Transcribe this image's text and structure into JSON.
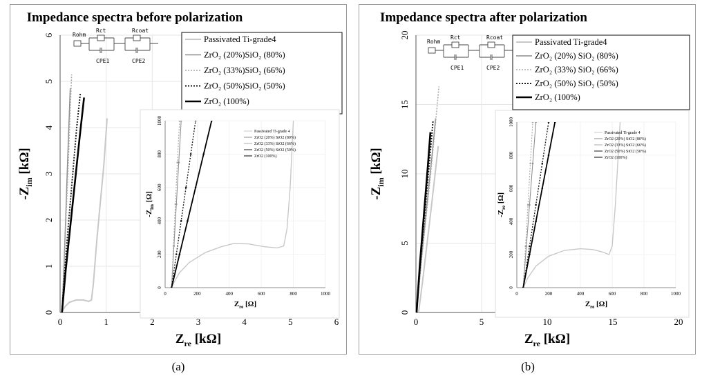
{
  "captions": [
    "(a)",
    "(b)"
  ],
  "circuit": {
    "labels": [
      "Rohm",
      "Rct",
      "Rcoat",
      "CPE1",
      "CPE2"
    ]
  },
  "colors": {
    "passivated": "#c8c8c8",
    "zro2_20": "#8c8c8c",
    "zro2_33": "#a8a8a8",
    "zro2_50": "#1a1a1a",
    "zro2_100": "#000000"
  },
  "chart_data": [
    {
      "type": "line",
      "title": "Impedance spectra before polarization",
      "xlabel": "Z",
      "xlabel_sub": "re",
      "xlabel_unit": "[kΩ]",
      "ylabel": "-Z",
      "ylabel_sub": "im",
      "ylabel_unit": "[kΩ]",
      "xlim": [
        0,
        6
      ],
      "ylim": [
        0,
        6
      ],
      "xticks": [
        0,
        1,
        2,
        3,
        4,
        5,
        6
      ],
      "yticks": [
        0,
        1,
        2,
        3,
        4,
        5,
        6
      ],
      "legend_position": "top-right",
      "series": [
        {
          "name": "Passivated Ti-grade4",
          "key": "passivated",
          "style": "solid-light",
          "x": [
            0.04,
            0.1,
            0.2,
            0.35,
            0.5,
            0.62,
            0.68,
            0.72,
            0.8,
            0.95,
            1.02
          ],
          "y": [
            0.0,
            0.12,
            0.22,
            0.27,
            0.27,
            0.24,
            0.27,
            0.6,
            1.6,
            3.2,
            4.2
          ]
        },
        {
          "name": "ZrO₂ (20%)SiO₂ (80%)",
          "key": "zro2_20",
          "style": "solid",
          "x": [
            0.04,
            0.08,
            0.12,
            0.16,
            0.2,
            0.22
          ],
          "y": [
            0.0,
            0.9,
            2.0,
            3.2,
            4.3,
            4.85
          ]
        },
        {
          "name": "ZrO₂ (33%)SiO₂ (66%)",
          "key": "zro2_33",
          "style": "dotted-light",
          "x": [
            0.04,
            0.08,
            0.13,
            0.18,
            0.22,
            0.25
          ],
          "y": [
            0.0,
            0.9,
            2.1,
            3.3,
            4.4,
            5.15
          ]
        },
        {
          "name": "ZrO₂ (50%)SiO₂ (50%)",
          "key": "zro2_50",
          "style": "dotted-dark",
          "x": [
            0.04,
            0.1,
            0.18,
            0.27,
            0.36,
            0.44
          ],
          "y": [
            0.0,
            0.9,
            1.9,
            2.95,
            4.0,
            4.75
          ]
        },
        {
          "name": "ZrO₂ (100%)",
          "key": "zro2_100",
          "style": "solid-bold",
          "x": [
            0.04,
            0.12,
            0.22,
            0.32,
            0.42,
            0.52
          ],
          "y": [
            0.0,
            0.9,
            1.85,
            2.8,
            3.75,
            4.65
          ]
        }
      ],
      "inset": {
        "xlabel": "Z",
        "xlabel_sub": "re",
        "xlabel_unit": "[Ω]",
        "ylabel": "-Z",
        "ylabel_sub": "im",
        "ylabel_unit": "[Ω]",
        "xlim": [
          0,
          1000
        ],
        "ylim": [
          0,
          1000
        ],
        "xticks": [
          0,
          200,
          400,
          600,
          800,
          1000
        ],
        "yticks": [
          0,
          200,
          400,
          600,
          800,
          1000
        ],
        "legend": [
          "Passivated Ti-grade 4",
          "ZrO2 (20%) SiO2 (80%)",
          "ZrO2 (33%) SiO2 (66%)",
          "ZrO2 (50%) SiO2 (50%)",
          "ZrO2 (100%)"
        ],
        "series": [
          {
            "key": "passivated",
            "x": [
              40,
              60,
              90,
              150,
              250,
              350,
              430,
              520,
              620,
              700,
              740,
              760,
              780,
              800
            ],
            "y": [
              0,
              40,
              90,
              150,
              210,
              245,
              265,
              262,
              245,
              238,
              250,
              350,
              600,
              1000
            ]
          },
          {
            "key": "zro2_20",
            "x": [
              40,
              55,
              70,
              85,
              100
            ],
            "y": [
              0,
              250,
              500,
              750,
              1000
            ]
          },
          {
            "key": "zro2_33",
            "x": [
              40,
              52,
              64,
              76,
              90
            ],
            "y": [
              0,
              250,
              500,
              750,
              1000
            ]
          },
          {
            "key": "zro2_50",
            "x": [
              40,
              70,
              100,
              130,
              160,
              190
            ],
            "y": [
              0,
              200,
              400,
              600,
              800,
              1000
            ]
          },
          {
            "key": "zro2_100",
            "x": [
              40,
              90,
              140,
              190,
              240,
              290
            ],
            "y": [
              0,
              200,
              400,
              600,
              800,
              1000
            ]
          }
        ]
      }
    },
    {
      "type": "line",
      "title": "Impedance spectra after polarization",
      "xlabel": "Z",
      "xlabel_sub": "re",
      "xlabel_unit": "[kΩ]",
      "ylabel": "-Z",
      "ylabel_sub": "im",
      "ylabel_unit": "[kΩ]",
      "xlim": [
        0,
        20
      ],
      "ylim": [
        0,
        20
      ],
      "xticks": [
        0,
        5,
        10,
        15,
        20
      ],
      "yticks": [
        0,
        5,
        10,
        15,
        20
      ],
      "legend_position": "top-right",
      "series": [
        {
          "name": "Passivated Ti-grade4",
          "key": "passivated",
          "style": "solid-light",
          "x": [
            0.2,
            0.5,
            0.8,
            1.1,
            1.4,
            1.7
          ],
          "y": [
            0.0,
            2.2,
            4.6,
            7.0,
            9.5,
            12.0
          ]
        },
        {
          "name": "ZrO₂ (20%) SiO₂ (80%)",
          "key": "zro2_20",
          "style": "solid",
          "x": [
            0.05,
            0.4,
            0.8,
            1.2,
            1.5
          ],
          "y": [
            0.0,
            3.7,
            7.4,
            11.1,
            14.0
          ]
        },
        {
          "name": "ZrO₂ (33%) SiO₂ (66%)",
          "key": "zro2_33",
          "style": "dotted-light",
          "x": [
            0.05,
            0.45,
            0.9,
            1.35,
            1.75
          ],
          "y": [
            0.0,
            4.0,
            8.0,
            12.2,
            16.3
          ]
        },
        {
          "name": "ZrO₂ (50%) SiO₂ (50%)",
          "key": "zro2_50",
          "style": "dotted-dark",
          "x": [
            0.05,
            0.35,
            0.7,
            1.05,
            1.3
          ],
          "y": [
            0.0,
            3.7,
            7.4,
            11.1,
            13.8
          ]
        },
        {
          "name": "ZrO₂ (100%)",
          "key": "zro2_100",
          "style": "solid-bold",
          "x": [
            0.05,
            0.3,
            0.6,
            0.9,
            1.1
          ],
          "y": [
            0.0,
            3.5,
            7.0,
            10.5,
            13.0
          ]
        }
      ],
      "inset": {
        "xlabel": "Z",
        "xlabel_sub": "re",
        "xlabel_unit": "[Ω]",
        "ylabel": "-Z",
        "ylabel_sub": "re",
        "ylabel_unit": "[Ω]",
        "xlim": [
          0,
          1000
        ],
        "ylim": [
          0,
          1000
        ],
        "xticks": [
          0,
          200,
          400,
          600,
          800,
          1000
        ],
        "yticks": [
          0,
          200,
          400,
          600,
          800,
          1000
        ],
        "legend": [
          "Passivated Ti-grade 4",
          "ZrO2 (20%) SiO2 (80%)",
          "ZrO2 (33%) SiO2 (66%)",
          "ZrO2 (50%) SiO2 (50%)",
          "ZrO2 (100%)"
        ],
        "series": [
          {
            "key": "passivated",
            "x": [
              40,
              70,
              120,
              200,
              300,
              400,
              480,
              540,
              580,
              600,
              620,
              650
            ],
            "y": [
              0,
              60,
              130,
              190,
              225,
              235,
              230,
              215,
              200,
              250,
              500,
              1000
            ]
          },
          {
            "key": "zro2_20",
            "x": [
              40,
              60,
              80,
              100,
              120
            ],
            "y": [
              0,
              250,
              500,
              750,
              1000
            ]
          },
          {
            "key": "zro2_33",
            "x": [
              40,
              55,
              70,
              85,
              100
            ],
            "y": [
              0,
              250,
              500,
              750,
              1000
            ]
          },
          {
            "key": "zro2_50",
            "x": [
              40,
              80,
              120,
              160,
              200
            ],
            "y": [
              0,
              250,
              500,
              750,
              1000
            ]
          },
          {
            "key": "zro2_100",
            "x": [
              40,
              80,
              120,
              160,
              200,
              240
            ],
            "y": [
              0,
              200,
              400,
              600,
              800,
              1000
            ]
          }
        ]
      }
    }
  ]
}
